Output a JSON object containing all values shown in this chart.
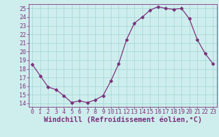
{
  "x": [
    0,
    1,
    2,
    3,
    4,
    5,
    6,
    7,
    8,
    9,
    10,
    11,
    12,
    13,
    14,
    15,
    16,
    17,
    18,
    19,
    20,
    21,
    22,
    23
  ],
  "y": [
    18.5,
    17.2,
    15.9,
    15.6,
    14.9,
    14.1,
    14.3,
    14.1,
    14.4,
    14.9,
    16.6,
    18.6,
    21.4,
    23.3,
    24.0,
    24.8,
    25.2,
    25.0,
    24.9,
    25.0,
    23.8,
    21.4,
    19.8,
    18.6
  ],
  "line_color": "#7b2f7b",
  "marker": "D",
  "marker_size": 2.5,
  "background_color": "#ceeeed",
  "grid_color": "#a8d8d8",
  "xlabel": "Windchill (Refroidissement éolien,°C)",
  "xlabel_fontsize": 7.5,
  "ytick_labels": [
    "14",
    "15",
    "16",
    "17",
    "18",
    "19",
    "20",
    "21",
    "22",
    "23",
    "24",
    "25"
  ],
  "yticks": [
    14,
    15,
    16,
    17,
    18,
    19,
    20,
    21,
    22,
    23,
    24,
    25
  ],
  "xticks": [
    0,
    1,
    2,
    3,
    4,
    5,
    6,
    7,
    8,
    9,
    10,
    11,
    12,
    13,
    14,
    15,
    16,
    17,
    18,
    19,
    20,
    21,
    22,
    23
  ],
  "ylim": [
    13.6,
    25.5
  ],
  "xlim": [
    -0.5,
    23.5
  ],
  "tick_fontsize": 6,
  "spine_color": "#7b2f7b"
}
